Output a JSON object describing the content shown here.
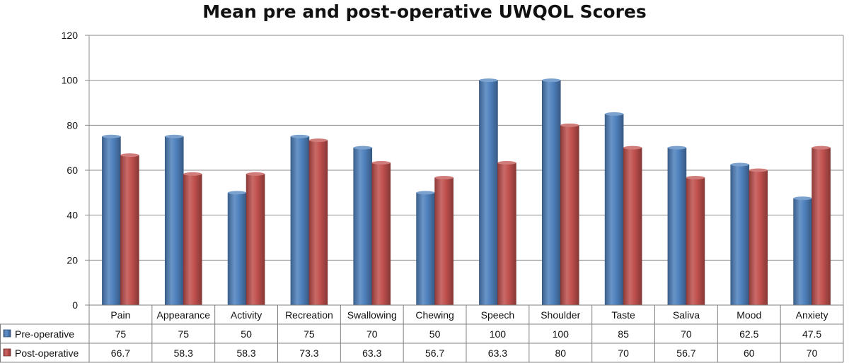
{
  "chart_data": {
    "type": "bar",
    "title": "Mean pre and post-operative UWQOL Scores",
    "xlabel": "",
    "ylabel": "",
    "ylim": [
      0,
      120
    ],
    "yticks": [
      0,
      20,
      40,
      60,
      80,
      100,
      120
    ],
    "grid": true,
    "categories": [
      "Pain",
      "Appearance",
      "Activity",
      "Recreation",
      "Swallowing",
      "Chewing",
      "Speech",
      "Shoulder",
      "Taste",
      "Saliva",
      "Mood",
      "Anxiety"
    ],
    "series": [
      {
        "name": "Pre-operative",
        "color": "#4f81bd",
        "values": [
          75,
          75,
          50,
          75,
          70,
          50,
          100,
          100,
          85,
          70,
          62.5,
          47.5
        ],
        "labels": [
          "75",
          "75",
          "50",
          "75",
          "70",
          "50",
          "100",
          "100",
          "85",
          "70",
          "62.5",
          "47.5"
        ]
      },
      {
        "name": "Post-operative",
        "color": "#c0504d",
        "values": [
          66.7,
          58.3,
          58.3,
          73.3,
          63.3,
          56.7,
          63.3,
          80,
          70,
          56.7,
          60,
          70
        ],
        "labels": [
          "66.7",
          "58.3",
          "58.3",
          "73.3",
          "63.3",
          "56.7",
          "63.3",
          "80",
          "70",
          "56.7",
          "60",
          "70"
        ]
      }
    ],
    "legend": "data-table"
  }
}
